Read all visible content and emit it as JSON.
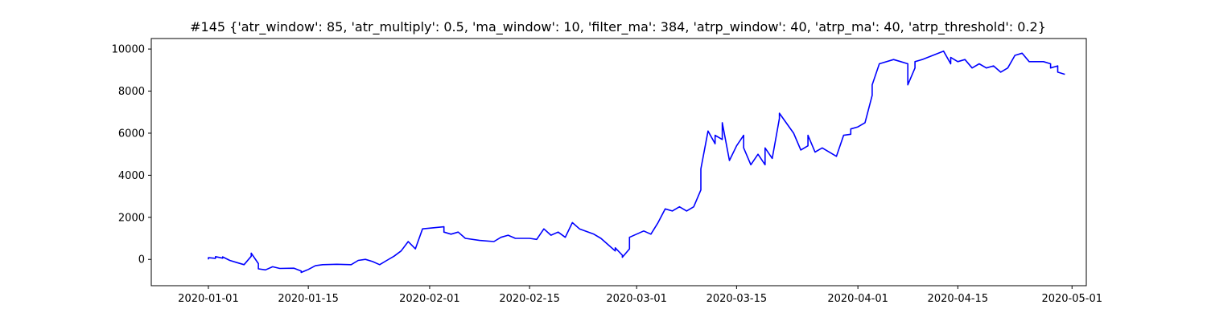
{
  "chart_data": {
    "type": "line",
    "title": "#145 {'atr_window': 85, 'atr_multiply': 0.5, 'ma_window': 10, 'filter_ma': 384, 'atrp_window': 40, 'atrp_ma': 40, 'atrp_threshold': 0.2}",
    "xlabel": "",
    "ylabel": "",
    "grid": false,
    "legend": "none",
    "x_ticks": [
      "2020-01-01",
      "2020-01-15",
      "2020-02-01",
      "2020-02-15",
      "2020-03-01",
      "2020-03-15",
      "2020-04-01",
      "2020-04-15",
      "2020-05-01"
    ],
    "y_ticks": [
      0,
      2000,
      4000,
      6000,
      8000,
      10000
    ],
    "xlim": [
      "2019-12-24",
      "2020-05-03"
    ],
    "ylim": [
      -1250,
      10500
    ],
    "series": [
      {
        "color": "#0000ff",
        "x": [
          "2020-01-01",
          "2020-01-01",
          "2020-01-02",
          "2020-01-02",
          "2020-01-03",
          "2020-01-03",
          "2020-01-04",
          "2020-01-05",
          "2020-01-06",
          "2020-01-07",
          "2020-01-07",
          "2020-01-08",
          "2020-01-08",
          "2020-01-09",
          "2020-01-10",
          "2020-01-11",
          "2020-01-13",
          "2020-01-14",
          "2020-01-14",
          "2020-01-15",
          "2020-01-16",
          "2020-01-17",
          "2020-01-19",
          "2020-01-21",
          "2020-01-22",
          "2020-01-23",
          "2020-01-24",
          "2020-01-25",
          "2020-01-26",
          "2020-01-27",
          "2020-01-28",
          "2020-01-29",
          "2020-01-30",
          "2020-01-31",
          "2020-02-03",
          "2020-02-03",
          "2020-02-04",
          "2020-02-05",
          "2020-02-06",
          "2020-02-08",
          "2020-02-10",
          "2020-02-11",
          "2020-02-12",
          "2020-02-13",
          "2020-02-15",
          "2020-02-16",
          "2020-02-17",
          "2020-02-18",
          "2020-02-19",
          "2020-02-20",
          "2020-02-21",
          "2020-02-22",
          "2020-02-24",
          "2020-02-25",
          "2020-02-26",
          "2020-02-27",
          "2020-02-27",
          "2020-02-28",
          "2020-02-28",
          "2020-02-29",
          "2020-02-29",
          "2020-03-02",
          "2020-03-03",
          "2020-03-04",
          "2020-03-05",
          "2020-03-06",
          "2020-03-07",
          "2020-03-08",
          "2020-03-09",
          "2020-03-10",
          "2020-03-10",
          "2020-03-11",
          "2020-03-12",
          "2020-03-12",
          "2020-03-13",
          "2020-03-13",
          "2020-03-14",
          "2020-03-15",
          "2020-03-16",
          "2020-03-16",
          "2020-03-17",
          "2020-03-18",
          "2020-03-19",
          "2020-03-19",
          "2020-03-20",
          "2020-03-21",
          "2020-03-21",
          "2020-03-23",
          "2020-03-24",
          "2020-03-25",
          "2020-03-25",
          "2020-03-26",
          "2020-03-27",
          "2020-03-29",
          "2020-03-30",
          "2020-03-31",
          "2020-03-31",
          "2020-04-01",
          "2020-04-02",
          "2020-04-03",
          "2020-04-03",
          "2020-04-04",
          "2020-04-06",
          "2020-04-07",
          "2020-04-07",
          "2020-04-08",
          "2020-04-08",
          "2020-04-09",
          "2020-04-09",
          "2020-04-10",
          "2020-04-13",
          "2020-04-14",
          "2020-04-14",
          "2020-04-15",
          "2020-04-16",
          "2020-04-17",
          "2020-04-18",
          "2020-04-19",
          "2020-04-20",
          "2020-04-21",
          "2020-04-22",
          "2020-04-23",
          "2020-04-24",
          "2020-04-25",
          "2020-04-26",
          "2020-04-27",
          "2020-04-28",
          "2020-04-28",
          "2020-04-29",
          "2020-04-29",
          "2020-04-30"
        ],
        "y": [
          0,
          80,
          50,
          130,
          60,
          120,
          -50,
          -150,
          -250,
          150,
          300,
          -200,
          -450,
          -500,
          -350,
          -430,
          -420,
          -550,
          -620,
          -480,
          -300,
          -250,
          -230,
          -250,
          -50,
          0,
          -100,
          -250,
          -50,
          150,
          400,
          850,
          500,
          1450,
          1550,
          1300,
          1200,
          1300,
          1000,
          900,
          850,
          1050,
          1150,
          1000,
          1000,
          950,
          1450,
          1150,
          1300,
          1050,
          1750,
          1450,
          1200,
          1000,
          700,
          400,
          550,
          200,
          100,
          500,
          1050,
          1350,
          1200,
          1750,
          2400,
          2300,
          2500,
          2300,
          2500,
          3300,
          4300,
          6100,
          5500,
          5900,
          5700,
          6500,
          4700,
          5400,
          5900,
          5300,
          4500,
          5000,
          4500,
          5300,
          4800,
          6700,
          6950,
          6000,
          5200,
          5400,
          5900,
          5100,
          5300,
          4900,
          5900,
          5950,
          6200,
          6300,
          6500,
          7800,
          8300,
          9300,
          9500,
          9400,
          9400,
          9300,
          8300,
          9100,
          9400,
          9500,
          9900,
          9300,
          9600,
          9400,
          9500,
          9100,
          9300,
          9100,
          9200,
          8900,
          9100,
          9700,
          9800,
          9400,
          9400,
          9400,
          9300,
          9100,
          9200,
          8900,
          8800
        ]
      }
    ]
  }
}
